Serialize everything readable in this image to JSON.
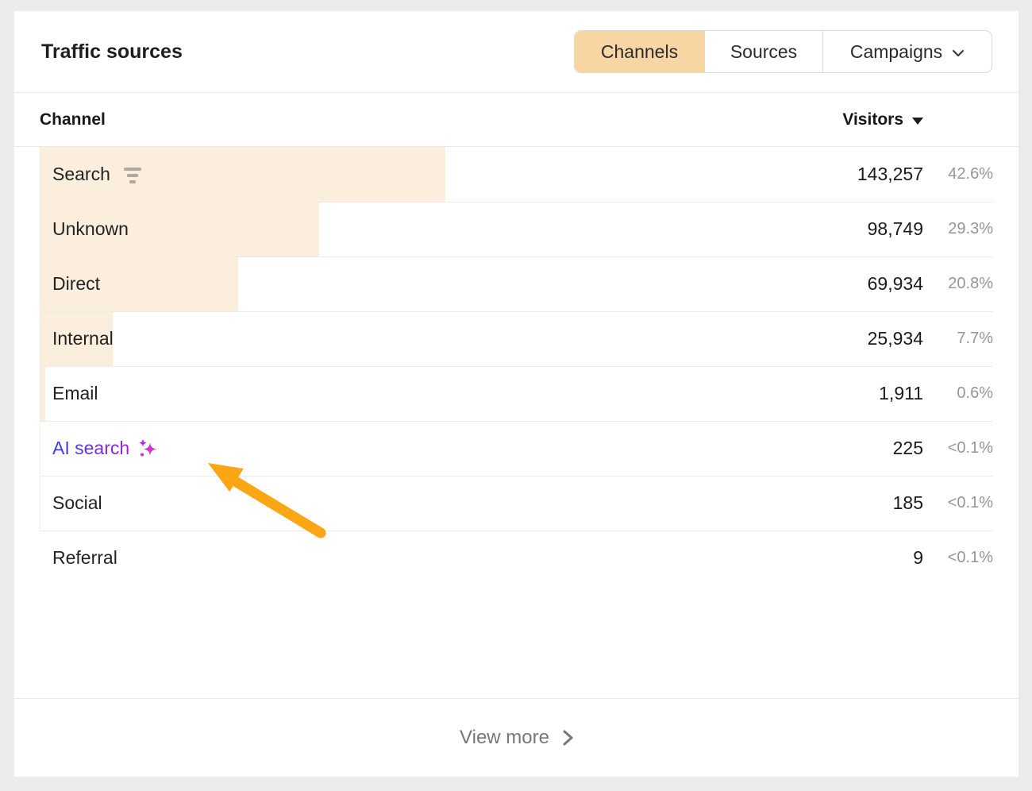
{
  "panel": {
    "title": "Traffic sources"
  },
  "tabs": [
    {
      "label": "Channels",
      "active": true
    },
    {
      "label": "Sources",
      "active": false
    },
    {
      "label": "Campaigns",
      "active": false,
      "has_chevron": true
    }
  ],
  "table": {
    "columns": {
      "channel": "Channel",
      "visitors": "Visitors"
    },
    "sort": {
      "column": "Visitors",
      "direction": "desc"
    },
    "rows": [
      {
        "label": "Search",
        "visitors": "143,257",
        "pct": "42.6%",
        "bar_pct": 42.6,
        "has_filter_icon": true
      },
      {
        "label": "Unknown",
        "visitors": "98,749",
        "pct": "29.3%",
        "bar_pct": 29.3
      },
      {
        "label": "Direct",
        "visitors": "69,934",
        "pct": "20.8%",
        "bar_pct": 20.8
      },
      {
        "label": "Internal",
        "visitors": "25,934",
        "pct": "7.7%",
        "bar_pct": 7.7
      },
      {
        "label": "Email",
        "visitors": "1,911",
        "pct": "0.6%",
        "bar_pct": 0.6
      },
      {
        "label": "AI search",
        "visitors": "225",
        "pct": "<0.1%",
        "bar_pct": 0.07,
        "is_ai_link": true,
        "annotated": true
      },
      {
        "label": "Social",
        "visitors": "185",
        "pct": "<0.1%",
        "bar_pct": 0.05
      },
      {
        "label": "Referral",
        "visitors": "9",
        "pct": "<0.1%",
        "bar_pct": 0.003
      }
    ]
  },
  "footer": {
    "view_more": "View more"
  },
  "colors": {
    "page_bg": "#EBECEE",
    "panel_bg": "#FFFFFF",
    "active_tab_bg": "#F8D6A3",
    "bar_fill": "#FBEEDC",
    "annotation_arrow": "#FBA615",
    "ai_gradient_start": "#3240E4",
    "ai_gradient_end": "#A41FD8",
    "sparkle_gradient_start": "#9A2BE0",
    "sparkle_gradient_end": "#F23BC0",
    "secondary_text": "#96969A"
  }
}
